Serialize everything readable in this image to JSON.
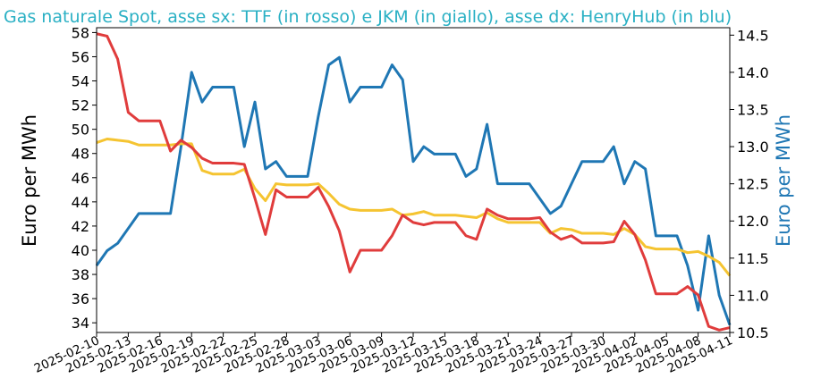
{
  "chart_data": {
    "type": "line",
    "title": "Gas naturale Spot, asse sx: TTF (in rosso) e JKM (in giallo), asse dx: HenryHub (in blu)",
    "ylabel": "Euro per MWh",
    "y2label": "Euro per MWh",
    "ylim": [
      33.2,
      58.4
    ],
    "y2lim": [
      10.5,
      14.6
    ],
    "yticks": [
      34,
      36,
      38,
      40,
      42,
      44,
      46,
      48,
      50,
      52,
      54,
      56,
      58
    ],
    "y2ticks": [
      "10.5",
      "11.0",
      "11.5",
      "12.0",
      "12.5",
      "13.0",
      "13.5",
      "14.0",
      "14.5"
    ],
    "xticks": [
      "2025-02-10",
      "2025-02-13",
      "2025-02-16",
      "2025-02-19",
      "2025-02-22",
      "2025-02-25",
      "2025-02-28",
      "2025-03-03",
      "2025-03-06",
      "2025-03-09",
      "2025-03-12",
      "2025-03-15",
      "2025-03-18",
      "2025-03-21",
      "2025-03-24",
      "2025-03-27",
      "2025-03-30",
      "2025-04-02",
      "2025-04-05",
      "2025-04-08",
      "2025-04-11"
    ],
    "grid": false,
    "colors": {
      "title": "#2ab0c4",
      "ttf": "#e03c3c",
      "jkm": "#f5c431",
      "henryhub": "#1f77b4"
    },
    "x": [
      "2025-02-10",
      "2025-02-11",
      "2025-02-12",
      "2025-02-13",
      "2025-02-14",
      "2025-02-15",
      "2025-02-16",
      "2025-02-17",
      "2025-02-18",
      "2025-02-19",
      "2025-02-20",
      "2025-02-21",
      "2025-02-22",
      "2025-02-23",
      "2025-02-24",
      "2025-02-25",
      "2025-02-26",
      "2025-02-27",
      "2025-02-28",
      "2025-03-01",
      "2025-03-02",
      "2025-03-03",
      "2025-03-04",
      "2025-03-05",
      "2025-03-06",
      "2025-03-07",
      "2025-03-08",
      "2025-03-09",
      "2025-03-10",
      "2025-03-11",
      "2025-03-12",
      "2025-03-13",
      "2025-03-14",
      "2025-03-15",
      "2025-03-16",
      "2025-03-17",
      "2025-03-18",
      "2025-03-19",
      "2025-03-20",
      "2025-03-21",
      "2025-03-22",
      "2025-03-23",
      "2025-03-24",
      "2025-03-25",
      "2025-03-26",
      "2025-03-27",
      "2025-03-28",
      "2025-03-29",
      "2025-03-30",
      "2025-03-31",
      "2025-04-01",
      "2025-04-02",
      "2025-04-03",
      "2025-04-04",
      "2025-04-05",
      "2025-04-06",
      "2025-04-07",
      "2025-04-08",
      "2025-04-09",
      "2025-04-10",
      "2025-04-11"
    ],
    "series": [
      {
        "key": "ttf",
        "axis": "left",
        "values": [
          57.9,
          57.7,
          55.8,
          51.4,
          50.7,
          50.7,
          50.7,
          48.2,
          49.1,
          48.5,
          47.6,
          47.2,
          47.2,
          47.2,
          47.1,
          44.3,
          41.3,
          45.0,
          44.4,
          44.4,
          44.4,
          45.2,
          43.6,
          41.6,
          38.2,
          40.0,
          40.0,
          40.0,
          41.2,
          42.9,
          42.3,
          42.1,
          42.3,
          42.3,
          42.3,
          41.2,
          40.9,
          43.4,
          42.9,
          42.6,
          42.6,
          42.6,
          42.7,
          41.5,
          40.9,
          41.2,
          40.6,
          40.6,
          40.6,
          40.7,
          42.4,
          41.3,
          39.2,
          36.4,
          36.4,
          36.4,
          37.0,
          36.3,
          33.7,
          33.4,
          33.6
        ]
      },
      {
        "key": "jkm",
        "axis": "left",
        "values": [
          48.9,
          49.2,
          49.1,
          49.0,
          48.7,
          48.7,
          48.7,
          48.7,
          48.8,
          48.8,
          46.6,
          46.3,
          46.3,
          46.3,
          46.7,
          45.1,
          44.1,
          45.5,
          45.4,
          45.4,
          45.4,
          45.5,
          44.7,
          43.8,
          43.4,
          43.3,
          43.3,
          43.3,
          43.4,
          42.9,
          43.0,
          43.2,
          42.9,
          42.9,
          42.9,
          42.8,
          42.7,
          43.1,
          42.6,
          42.3,
          42.3,
          42.3,
          42.3,
          41.4,
          41.8,
          41.7,
          41.4,
          41.4,
          41.4,
          41.3,
          41.8,
          41.3,
          40.3,
          40.1,
          40.1,
          40.1,
          39.8,
          39.9,
          39.5,
          39.0,
          37.9
        ]
      },
      {
        "key": "henryhub",
        "axis": "right",
        "values": [
          11.4,
          11.6,
          11.7,
          11.9,
          12.1,
          12.1,
          12.1,
          12.1,
          13.0,
          14.0,
          13.6,
          13.8,
          13.8,
          13.8,
          13.0,
          13.6,
          12.7,
          12.8,
          12.6,
          12.6,
          12.6,
          13.4,
          14.1,
          14.2,
          13.6,
          13.8,
          13.8,
          13.8,
          14.1,
          13.9,
          12.8,
          13.0,
          12.9,
          12.9,
          12.9,
          12.6,
          12.7,
          13.3,
          12.5,
          12.5,
          12.5,
          12.5,
          12.3,
          12.1,
          12.2,
          12.5,
          12.8,
          12.8,
          12.8,
          13.0,
          12.5,
          12.8,
          12.7,
          11.8,
          11.8,
          11.8,
          11.4,
          10.8,
          11.8,
          11.0,
          10.6
        ]
      }
    ]
  }
}
